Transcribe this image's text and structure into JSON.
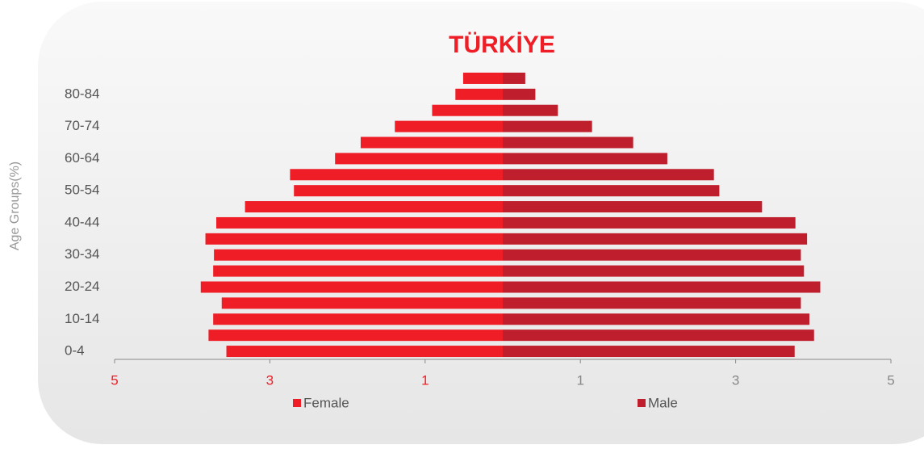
{
  "chart_data": {
    "type": "pyramid",
    "title": "TÜRKİYE",
    "y_label": "Age Groups(%)",
    "categories": [
      "0-4",
      null,
      "10-14",
      null,
      "20-24",
      null,
      "30-34",
      null,
      "40-44",
      null,
      "50-54",
      null,
      "60-64",
      null,
      "70-74",
      null,
      "80-84",
      null
    ],
    "series": [
      {
        "name": "Female",
        "color": "#ee1d26",
        "values": [
          -3.56,
          -3.79,
          -3.73,
          -3.62,
          -3.89,
          -3.73,
          -3.72,
          -3.83,
          -3.69,
          -3.32,
          -2.69,
          -2.74,
          -2.16,
          -1.83,
          -1.39,
          -0.91,
          -0.61,
          -0.51
        ]
      },
      {
        "name": "Male",
        "color": "#bf1e2c",
        "values": [
          3.76,
          4.01,
          3.95,
          3.84,
          4.09,
          3.88,
          3.84,
          3.92,
          3.77,
          3.34,
          2.79,
          2.72,
          2.12,
          1.68,
          1.15,
          0.71,
          0.42,
          0.29
        ]
      }
    ],
    "xlim": [
      -5,
      5
    ],
    "xticks": [
      {
        "value": -5,
        "label": "5"
      },
      {
        "value": -3,
        "label": "3"
      },
      {
        "value": -1,
        "label": "1"
      },
      1,
      3,
      5
    ]
  }
}
